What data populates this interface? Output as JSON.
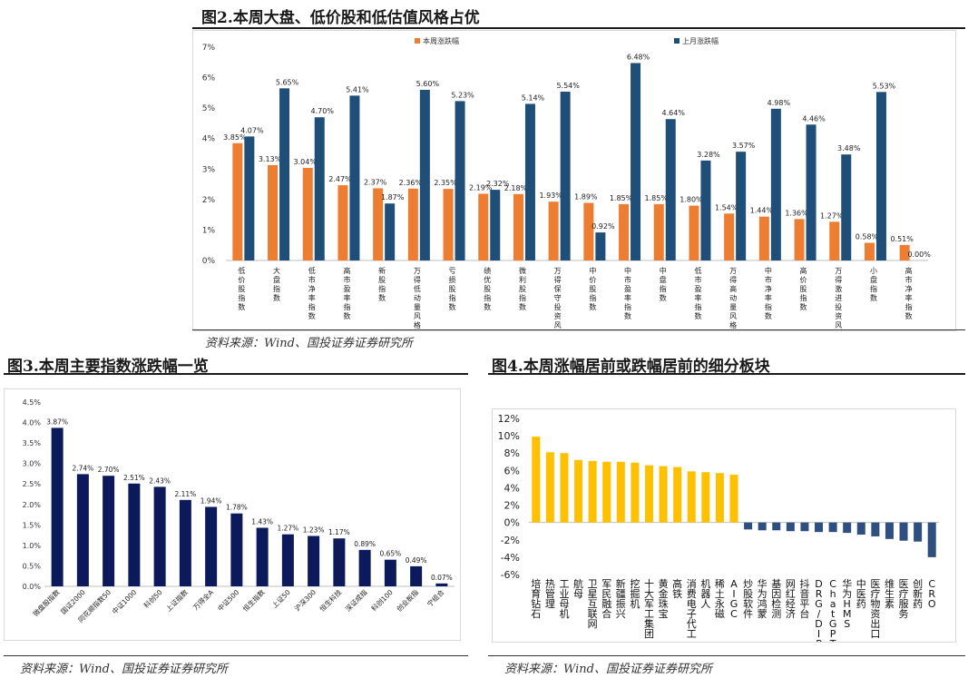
{
  "fig2": {
    "title": "图2.本周大盘、低价股和低估值风格占优",
    "source": "资料来源：Wind、国投证券证券研究所"
  },
  "fig3": {
    "title": "图3.本周主要指数涨跌幅一览",
    "source": "资料来源：Wind、国投证券证券研究所"
  },
  "fig4": {
    "title": "图4.本周涨幅居前或跌幅居前的细分板块",
    "source": "资料来源：Wind、国投证券证券研究所"
  },
  "chart_data": [
    {
      "id": "fig2",
      "type": "bar",
      "categories": [
        "低价股指数",
        "大盘指数",
        "低市净率指数",
        "高市盈率指数",
        "新股指数",
        "万得低动量风格",
        "亏损股指数",
        "绩优股指数",
        "微利股指数",
        "万得保守投资风格",
        "中价股指数",
        "中市盈率指数",
        "中盘指数",
        "低市盈率指数",
        "万得高动量风格",
        "中市净率指数",
        "高价股指数",
        "万得激进投资风格",
        "小盘指数",
        "高市净率指数"
      ],
      "series": [
        {
          "name": "本周涨跌幅",
          "color": "#ED7D31",
          "values": [
            3.85,
            3.13,
            3.04,
            2.47,
            2.37,
            2.36,
            2.35,
            2.19,
            2.18,
            1.93,
            1.89,
            1.85,
            1.85,
            1.8,
            1.54,
            1.44,
            1.36,
            1.27,
            0.58,
            0.51
          ],
          "labels": [
            "3.85%",
            "3.13%",
            "3.04%",
            "2.47%",
            "2.37%",
            "2.36%",
            "2.35%",
            "2.19%",
            "2.18%",
            "1.93%",
            "1.89%",
            "1.85%",
            "1.85%",
            "1.80%",
            "1.54%",
            "1.44%",
            "1.36%",
            "1.27%",
            "0.58%",
            "0.51%"
          ]
        },
        {
          "name": "上月涨跌幅",
          "color": "#1F4E79",
          "values": [
            4.07,
            5.65,
            4.7,
            5.41,
            1.87,
            5.6,
            5.23,
            2.32,
            5.14,
            5.54,
            0.92,
            6.48,
            4.64,
            3.28,
            3.57,
            4.98,
            4.46,
            3.48,
            5.53,
            0.0
          ],
          "labels": [
            "4.07%",
            "5.65%",
            "4.70%",
            "5.41%",
            "1.87%",
            "5.60%",
            "5.23%",
            "2.32%",
            "5.14%",
            "5.54%",
            "0.92%",
            "6.48%",
            "4.64%",
            "3.28%",
            "3.57%",
            "4.98%",
            "4.46%",
            "3.48%",
            "5.53%",
            "0.00%"
          ]
        }
      ],
      "ylim": [
        0,
        7
      ],
      "yticks": [
        "0%",
        "1%",
        "2%",
        "3%",
        "4%",
        "5%",
        "6%",
        "7%"
      ],
      "legend": "top-center",
      "grid": false
    },
    {
      "id": "fig3",
      "type": "bar",
      "categories": [
        "微盘股指数",
        "国证2000",
        "同花顺指数50",
        "中证1000",
        "科创50",
        "上证指数",
        "万得全A",
        "中证500",
        "恒生指数",
        "上证50",
        "沪深300",
        "恒生科技",
        "深证成指",
        "科创100",
        "创业板指",
        "宁组合"
      ],
      "values": [
        3.87,
        2.74,
        2.7,
        2.51,
        2.43,
        2.11,
        1.94,
        1.78,
        1.43,
        1.27,
        1.23,
        1.17,
        0.89,
        0.65,
        0.49,
        0.07
      ],
      "labels": [
        "3.87%",
        "2.74%",
        "2.70%",
        "2.51%",
        "2.43%",
        "2.11%",
        "1.94%",
        "1.78%",
        "1.43%",
        "1.27%",
        "1.23%",
        "1.17%",
        "0.89%",
        "0.65%",
        "0.49%",
        "0.07%"
      ],
      "ylim": [
        0,
        4.5
      ],
      "yticks": [
        "0.0%",
        "0.5%",
        "1.0%",
        "1.5%",
        "2.0%",
        "2.5%",
        "3.0%",
        "3.5%",
        "4.0%",
        "4.5%"
      ],
      "color": "#0C1A5C",
      "grid": false
    },
    {
      "id": "fig4",
      "type": "bar",
      "categories": [
        "培育钻石",
        "热管理",
        "工业母机",
        "航母",
        "卫星互联网",
        "军民融合",
        "新疆振兴",
        "挖掘机",
        "十大军工集团",
        "黄金珠宝",
        "高铁",
        "消费电子代工",
        "机器人",
        "稀土永磁",
        "AIGC",
        "炒股软件",
        "华为鸿蒙",
        "基因检测",
        "网红经济",
        "抖音平台",
        "DRG/DIP支付",
        "ChatGPT",
        "华为HMS",
        "中医药",
        "医疗物资出口",
        "维生素",
        "医疗服务",
        "创新药",
        "CRO"
      ],
      "values": [
        9.9,
        8.1,
        8.0,
        7.2,
        7.1,
        7.0,
        7.0,
        6.9,
        6.6,
        6.5,
        6.4,
        5.9,
        5.8,
        5.7,
        5.5,
        -0.8,
        -0.9,
        -0.9,
        -1.0,
        -1.0,
        -1.1,
        -1.1,
        -1.2,
        -1.4,
        -1.6,
        -1.9,
        -2.1,
        -2.2,
        -4.0
      ],
      "ylim": [
        -6,
        12
      ],
      "yticks": [
        "-6%",
        "-4%",
        "-2%",
        "0%",
        "2%",
        "4%",
        "6%",
        "8%",
        "10%",
        "12%"
      ],
      "positive_color": "#FFC000",
      "negative_color": "#2E4F7F",
      "grid": false
    }
  ]
}
